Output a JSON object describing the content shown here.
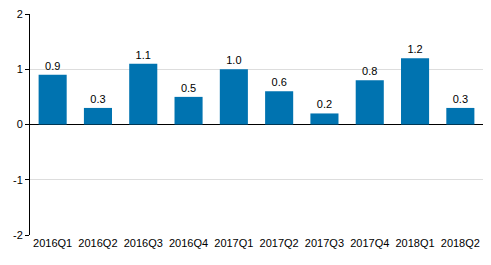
{
  "chart_data": {
    "type": "bar",
    "categories": [
      "2016Q1",
      "2016Q2",
      "2016Q3",
      "2016Q4",
      "2017Q1",
      "2017Q2",
      "2017Q3",
      "2017Q4",
      "2018Q1",
      "2018Q2"
    ],
    "values": [
      0.9,
      0.3,
      1.1,
      0.5,
      1.0,
      0.6,
      0.2,
      0.8,
      1.2,
      0.3
    ],
    "value_labels": [
      "0.9",
      "0.3",
      "1.1",
      "0.5",
      "1.0",
      "0.6",
      "0.2",
      "0.8",
      "1.2",
      "0.3"
    ],
    "data_labels": true,
    "color": "#0073b0",
    "ylim": [
      -2,
      2
    ],
    "yticks": [
      -2,
      -1,
      0,
      1,
      2
    ],
    "grid": true
  }
}
